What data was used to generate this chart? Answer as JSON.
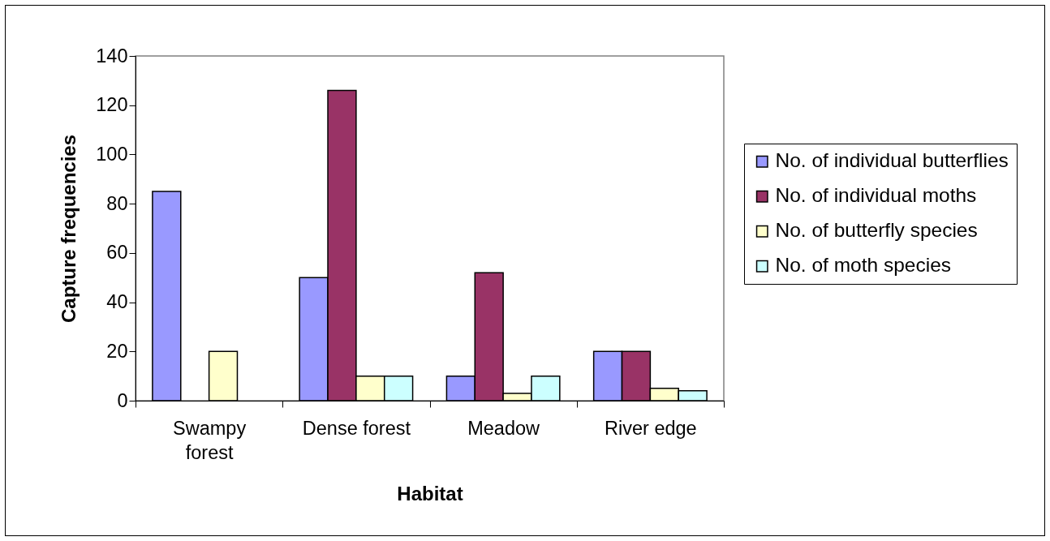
{
  "chart_data": {
    "type": "bar",
    "xlabel": "Habitat",
    "ylabel": "Capture frequencies",
    "categories": [
      "Swampy forest",
      "Dense forest",
      "Meadow",
      "River edge"
    ],
    "series": [
      {
        "name": "No. of individual butterflies",
        "color": "#9999ff",
        "values": [
          85,
          50,
          10,
          20
        ]
      },
      {
        "name": "No. of individual moths",
        "color": "#993366",
        "values": [
          null,
          126,
          52,
          20
        ]
      },
      {
        "name": "No. of butterfly species",
        "color": "#ffffcc",
        "values": [
          20,
          10,
          3,
          5
        ]
      },
      {
        "name": "No. of moth species",
        "color": "#ccffff",
        "values": [
          null,
          10,
          10,
          4
        ]
      }
    ],
    "ylim": [
      0,
      140
    ],
    "yticks": [
      0,
      20,
      40,
      60,
      80,
      100,
      120,
      140
    ],
    "grid": false,
    "legend": "right"
  }
}
